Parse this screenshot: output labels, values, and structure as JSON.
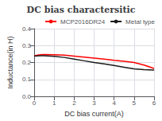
{
  "chart_data": {
    "type": "line",
    "title": "DC bias charactersitic",
    "xlabel": "DC bias current(A)",
    "ylabel": "Inductance(in H)",
    "x": [
      0,
      0.3,
      0.5,
      1.0,
      1.5,
      2.0,
      2.5,
      3.0,
      3.5,
      4.0,
      4.5,
      5.0,
      5.5,
      6.0
    ],
    "series": [
      {
        "name": "MCP2016DR24",
        "color": "#ff0000",
        "values": [
          0.24,
          0.246,
          0.247,
          0.246,
          0.243,
          0.238,
          0.232,
          0.226,
          0.22,
          0.213,
          0.207,
          0.2,
          0.185,
          0.165
        ]
      },
      {
        "name": "Metal type",
        "color": "#1a1a1a",
        "values": [
          0.238,
          0.24,
          0.24,
          0.237,
          0.23,
          0.22,
          0.21,
          0.2,
          0.192,
          0.182,
          0.172,
          0.162,
          0.158,
          0.155
        ]
      }
    ],
    "xlim": [
      0,
      6
    ],
    "ylim": [
      0,
      0.4
    ],
    "xticks": [
      0,
      1,
      2,
      3,
      4,
      5,
      6
    ],
    "yticks": [
      {
        "value": 0,
        "label": "0.0"
      },
      0.1,
      0.2,
      0.3,
      0.4
    ],
    "grid": true,
    "legend": "upper right"
  }
}
